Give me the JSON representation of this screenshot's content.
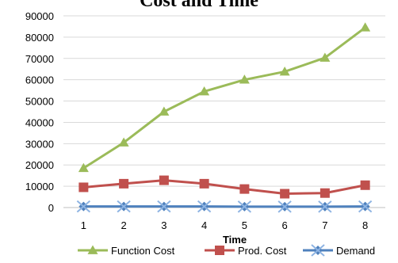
{
  "chart_data": {
    "type": "line",
    "title": "Cost and Time",
    "xlabel": "Time",
    "ylabel": "",
    "categories": [
      "1",
      "2",
      "3",
      "4",
      "5",
      "6",
      "7",
      "8"
    ],
    "ylim": [
      0,
      90000
    ],
    "yticks": [
      "0",
      "10000",
      "20000",
      "30000",
      "40000",
      "50000",
      "60000",
      "70000",
      "80000",
      "90000"
    ],
    "grid": true,
    "legend_position": "bottom",
    "series": [
      {
        "name": "Function Cost",
        "color": "#9bbb59",
        "marker": "triangle",
        "values": [
          18500,
          30500,
          45000,
          54500,
          60000,
          63800,
          70300,
          84500
        ]
      },
      {
        "name": "Prod. Cost",
        "color": "#c0504d",
        "marker": "square",
        "values": [
          9500,
          11200,
          12800,
          11200,
          8700,
          6500,
          6800,
          10500
        ]
      },
      {
        "name": "Demand",
        "color": "#4f81bd",
        "marker": "x-diamond",
        "values": [
          500,
          500,
          500,
          500,
          400,
          400,
          400,
          500
        ]
      }
    ]
  }
}
